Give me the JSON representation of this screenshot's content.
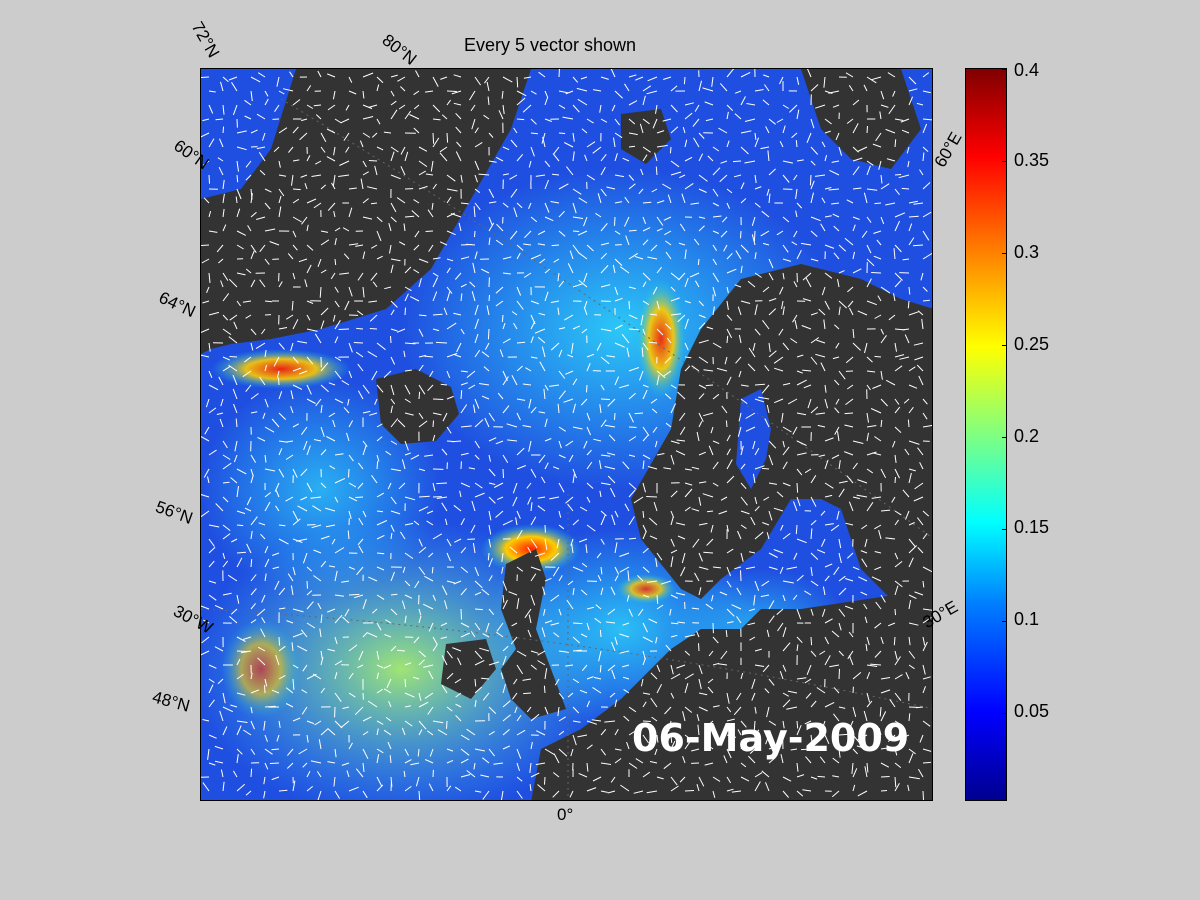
{
  "title": "Every 5 vector shown",
  "date_stamp": "06-May-2009",
  "lat_labels": [
    "72°N",
    "80°N",
    "60°N",
    "64°N",
    "56°N",
    "48°N"
  ],
  "lon_labels": [
    "60°E",
    "30°E",
    "30°W",
    "0°"
  ],
  "colorbar": {
    "colormap": "jet",
    "range": [
      0,
      0.4
    ],
    "ticks": [
      "0.4",
      "0.35",
      "0.3",
      "0.25",
      "0.2",
      "0.15",
      "0.1",
      "0.05"
    ]
  },
  "colors": {
    "land": "#333333",
    "background": "#cccccc",
    "vectors": "#ffffff"
  }
}
